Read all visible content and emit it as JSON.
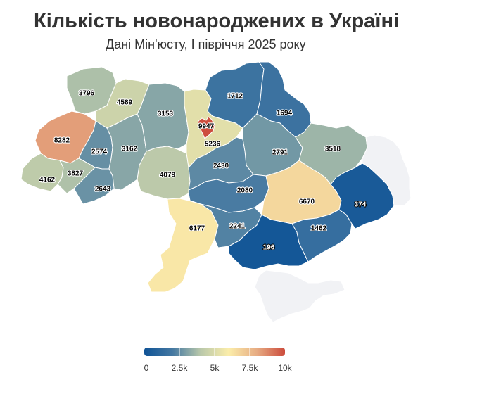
{
  "header": {
    "title": "Кількість новонароджених в Україні",
    "subtitle": "Дані Мін'юсту, І півріччя 2025 року"
  },
  "colors": {
    "scale": [
      "#0f5396",
      "#4478a2",
      "#b9c8aa",
      "#fbedaa",
      "#e7ac83",
      "#cc4b3c"
    ],
    "no_data": "#f1f2f5",
    "border": "#ffffff"
  },
  "legend": {
    "ticks": [
      "0",
      "2.5k",
      "5k",
      "7.5k",
      "10k"
    ],
    "min": 0,
    "max": 10000
  },
  "map": {
    "regions": [
      {
        "name": "volyn",
        "value": 3796
      },
      {
        "name": "rivne",
        "value": 4589
      },
      {
        "name": "lviv",
        "value": 8282
      },
      {
        "name": "ternopil",
        "value": 2574
      },
      {
        "name": "khmelnytskyi",
        "value": 3162
      },
      {
        "name": "zhytomyr",
        "value": 3153
      },
      {
        "name": "kyiv-oblast",
        "value": 5236
      },
      {
        "name": "kyiv-city",
        "value": 9947
      },
      {
        "name": "zakarpattia",
        "value": 4162
      },
      {
        "name": "ivano-frankivsk",
        "value": 3827
      },
      {
        "name": "chernivtsi",
        "value": 2643
      },
      {
        "name": "vinnytsia",
        "value": 4079
      },
      {
        "name": "chernihiv",
        "value": 1712
      },
      {
        "name": "sumy",
        "value": 1694
      },
      {
        "name": "poltava",
        "value": 2791
      },
      {
        "name": "kharkiv",
        "value": 3518
      },
      {
        "name": "cherkasy",
        "value": 2430
      },
      {
        "name": "kirovohrad",
        "value": 2080
      },
      {
        "name": "dnipropetrovsk",
        "value": 6670
      },
      {
        "name": "odesa",
        "value": 6177
      },
      {
        "name": "mykolaiv",
        "value": 2241
      },
      {
        "name": "kherson",
        "value": 196
      },
      {
        "name": "zaporizhzhia",
        "value": 1462
      },
      {
        "name": "donetsk",
        "value": 374
      },
      {
        "name": "luhansk",
        "value": null
      },
      {
        "name": "crimea",
        "value": null
      }
    ]
  }
}
